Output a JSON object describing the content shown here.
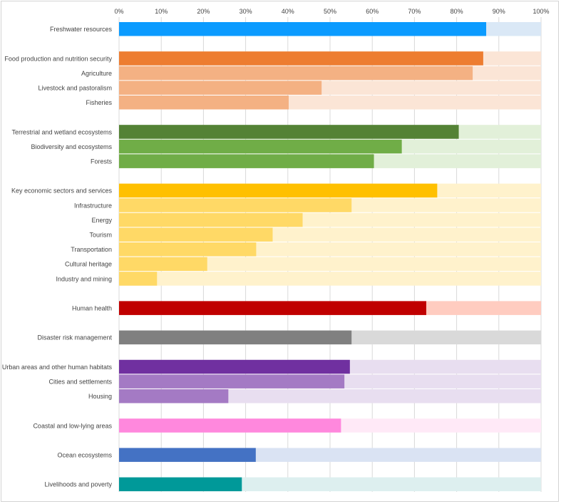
{
  "chart_data": {
    "type": "bar",
    "orientation": "horizontal",
    "stacked_to_total": true,
    "title": "",
    "xlabel": "",
    "ylabel": "",
    "xlim": [
      0,
      100
    ],
    "x_ticks": [
      "0%",
      "10%",
      "20%",
      "30%",
      "40%",
      "50%",
      "60%",
      "70%",
      "80%",
      "90%",
      "100%"
    ],
    "x_tick_values": [
      0,
      10,
      20,
      30,
      40,
      50,
      60,
      70,
      80,
      90,
      100
    ],
    "axis_position": "top",
    "grid": true,
    "legend": "none",
    "groups": [
      {
        "color": "#0B9BFF",
        "light_color": "#DAE8F6",
        "sub_color": "#0B9BFF",
        "items": [
          {
            "label": "Freshwater resources",
            "value": 87,
            "main": true
          }
        ]
      },
      {
        "color": "#ED7D31",
        "light_color": "#FBE5D6",
        "sub_color": "#F4B183",
        "items": [
          {
            "label": "Food production and nutrition security",
            "value": 86.3,
            "main": true
          },
          {
            "label": "Agriculture",
            "value": 83.8,
            "main": false
          },
          {
            "label": "Livestock and pastoralism",
            "value": 48,
            "main": false
          },
          {
            "label": "Fisheries",
            "value": 40.2,
            "main": false
          }
        ]
      },
      {
        "color": "#548235",
        "light_color": "#E2F0D9",
        "sub_color": "#70AD47",
        "items": [
          {
            "label": "Terrestrial and wetland ecosystems",
            "value": 80.5,
            "main": true
          },
          {
            "label": "Biodiversity and ecosystems",
            "value": 67,
            "main": false
          },
          {
            "label": "Forests",
            "value": 60.4,
            "main": false
          }
        ]
      },
      {
        "color": "#FFC000",
        "light_color": "#FFF2CC",
        "sub_color": "#FFD966",
        "items": [
          {
            "label": "Key economic sectors and services",
            "value": 75.4,
            "main": true
          },
          {
            "label": "Infrastructure",
            "value": 55.1,
            "main": false
          },
          {
            "label": "Energy",
            "value": 43.5,
            "main": false
          },
          {
            "label": "Tourism",
            "value": 36.4,
            "main": false
          },
          {
            "label": "Transportation",
            "value": 32.5,
            "main": false
          },
          {
            "label": "Cultural heritage",
            "value": 20.9,
            "main": false
          },
          {
            "label": "Industry and mining",
            "value": 9,
            "main": false
          }
        ]
      },
      {
        "color": "#C00000",
        "light_color": "#FFCCC0",
        "sub_color": "#C00000",
        "items": [
          {
            "label": "Human health",
            "value": 72.8,
            "main": true
          }
        ]
      },
      {
        "color": "#808080",
        "light_color": "#D9D9D9",
        "sub_color": "#808080",
        "items": [
          {
            "label": "Disaster risk management",
            "value": 55.1,
            "main": true
          }
        ]
      },
      {
        "color": "#7030A0",
        "light_color": "#E8DEF0",
        "sub_color": "#A47AC4",
        "items": [
          {
            "label": "Urban areas and other human habitats",
            "value": 54.7,
            "main": true
          },
          {
            "label": "Cities and settlements",
            "value": 53.4,
            "main": false
          },
          {
            "label": "Housing",
            "value": 25.9,
            "main": false
          }
        ]
      },
      {
        "color": "#FF88DD",
        "light_color": "#FFE9F7",
        "sub_color": "#FF88DD",
        "items": [
          {
            "label": "Coastal and low-lying areas",
            "value": 52.6,
            "main": true
          }
        ]
      },
      {
        "color": "#4472C4",
        "light_color": "#DAE3F3",
        "sub_color": "#4472C4",
        "items": [
          {
            "label": "Ocean ecosystems",
            "value": 32.4,
            "main": true
          }
        ]
      },
      {
        "color": "#009999",
        "light_color": "#DDEFEF",
        "sub_color": "#009999",
        "items": [
          {
            "label": "Livelihoods and poverty",
            "value": 29.1,
            "main": true
          }
        ]
      }
    ]
  }
}
